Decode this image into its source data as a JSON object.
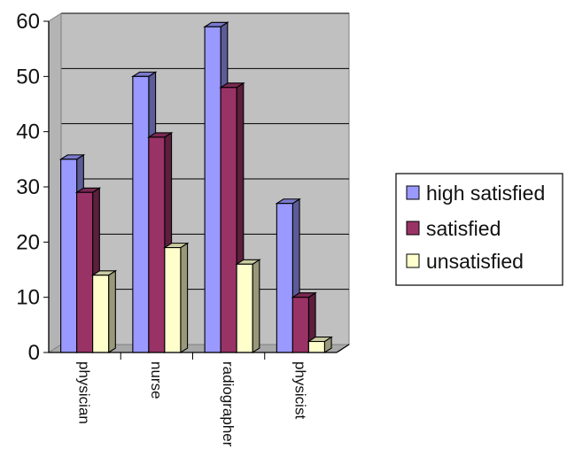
{
  "chart_data": {
    "type": "bar",
    "title": "",
    "xlabel": "",
    "ylabel": "",
    "categories": [
      "physician",
      "nurse",
      "radiographer",
      "physicist"
    ],
    "series": [
      {
        "name": "high satisfied",
        "values": [
          35,
          50,
          59,
          27
        ],
        "color": "#9999ff"
      },
      {
        "name": "satisfied",
        "values": [
          29,
          39,
          48,
          10
        ],
        "color": "#993366"
      },
      {
        "name": "unsatisfied",
        "values": [
          14,
          19,
          16,
          2
        ],
        "color": "#ffffcc"
      }
    ],
    "ylim": [
      0,
      60
    ],
    "yticks": [
      0,
      10,
      20,
      30,
      40,
      50,
      60
    ],
    "grid": true,
    "legend_position": "right",
    "style": "3d-column"
  }
}
